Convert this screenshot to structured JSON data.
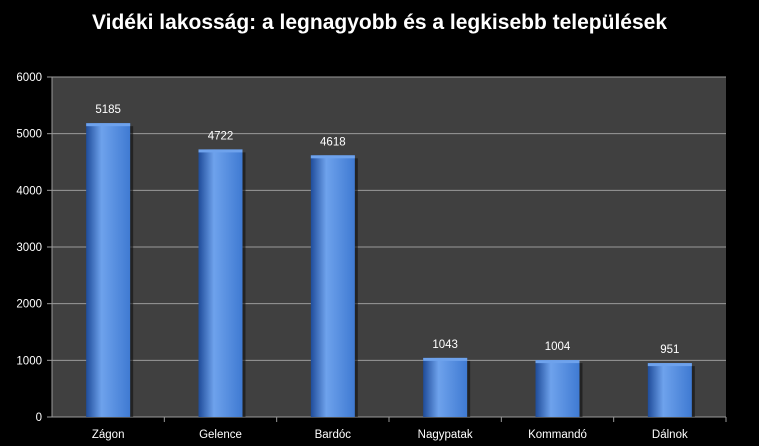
{
  "chart_data": {
    "type": "bar",
    "title": "Vidéki lakosság: a legnagyobb és a legkisebb települések",
    "xlabel": "",
    "ylabel": "",
    "categories": [
      "Zágon",
      "Gelence",
      "Bardóc",
      "Nagypatak",
      "Kommandó",
      "Dálnok"
    ],
    "values": [
      5185,
      4722,
      4618,
      1043,
      1004,
      951
    ],
    "ylim": [
      0,
      6000
    ],
    "yticks": [
      "0",
      "1000",
      "2000",
      "3000",
      "4000",
      "5000",
      "6000"
    ],
    "data_labels": [
      "5185",
      "4722",
      "4618",
      "1043",
      "1004",
      "951"
    ],
    "grid": true,
    "legend": "none",
    "colors": {
      "bar": "#3f7ad2",
      "bar_light": "#6ea2ec",
      "bar_dark": "#1f4c9a",
      "plot_background": "#404040",
      "page_background": "#000000",
      "gridline": "#9a9a9a",
      "text": "#ffffff"
    }
  }
}
